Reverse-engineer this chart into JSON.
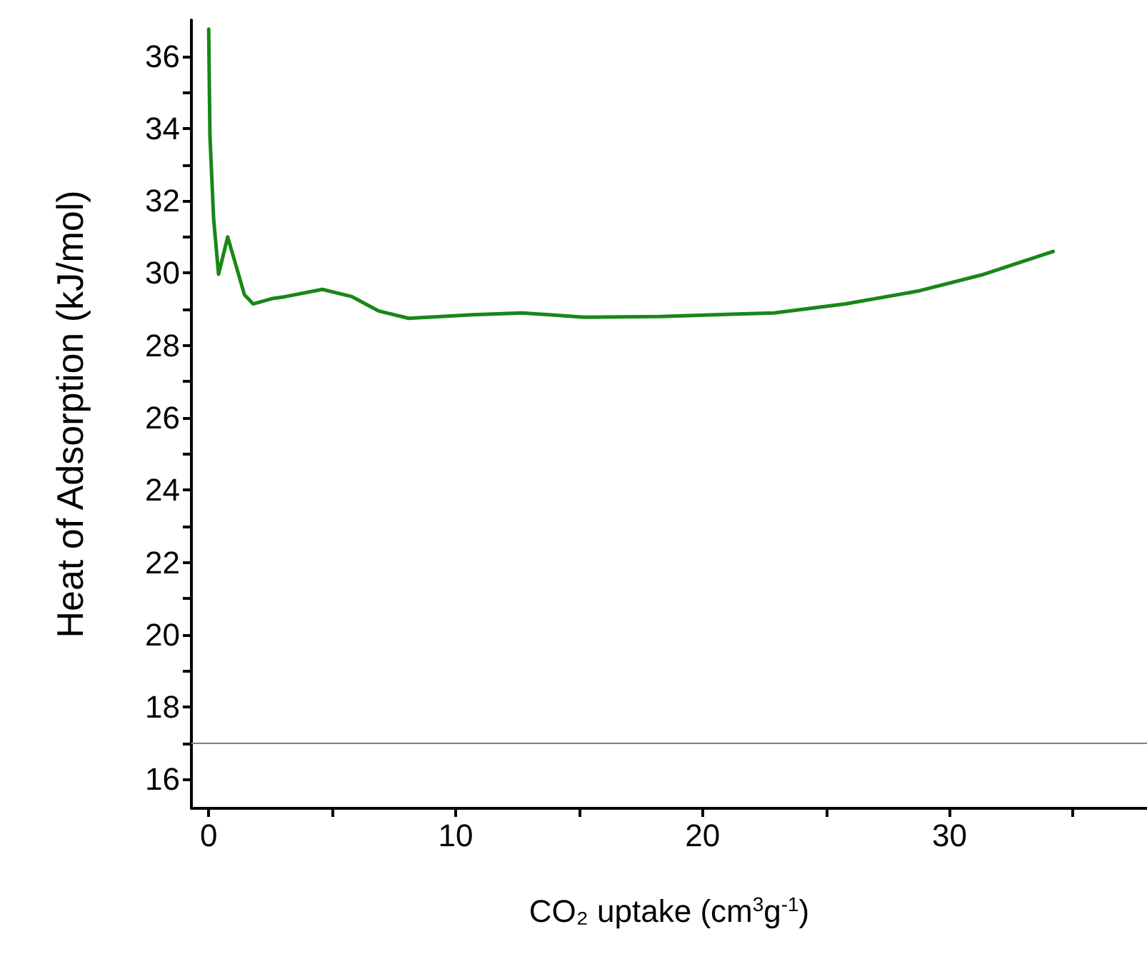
{
  "chart_data": {
    "type": "line",
    "xlabel": "CO₂ uptake (cm$^{3}$g$^{-1}$)",
    "ylabel": "Heat of Adsorption (kJ/mol)",
    "x": [
      0,
      0.05,
      0.2,
      0.4,
      0.77,
      1.45,
      1.8,
      2.6,
      3.1,
      4.6,
      5.8,
      6.9,
      8.1,
      10.7,
      12.7,
      15.2,
      18.3,
      22.9,
      25.8,
      28.7,
      31.3,
      34.2
    ],
    "series": [
      {
        "color": "#188718",
        "values": [
          36.75,
          33.8,
          31.5,
          29.97,
          31.0,
          29.4,
          29.15,
          29.3,
          29.35,
          29.55,
          29.35,
          28.95,
          28.75,
          28.85,
          28.9,
          28.78,
          28.8,
          28.9,
          29.15,
          29.5,
          29.95,
          30.6
        ]
      }
    ],
    "xlim": [
      -0.7,
      38
    ],
    "ylim": [
      15.2,
      37
    ],
    "xticks": [
      0,
      {
        "value": 5,
        "label": null
      },
      10,
      {
        "value": 15,
        "label": null
      },
      20,
      {
        "value": 25,
        "label": null
      },
      30,
      {
        "value": 35,
        "label": null
      }
    ],
    "yticks": [
      16,
      {
        "value": 17,
        "label": null
      },
      18,
      {
        "value": 19,
        "label": null
      },
      20,
      {
        "value": 21,
        "label": null
      },
      22,
      {
        "value": 23,
        "label": null
      },
      24,
      {
        "value": 25,
        "label": null
      },
      26,
      {
        "value": 27,
        "label": null
      },
      28,
      {
        "value": 29,
        "label": null
      },
      30,
      {
        "value": 31,
        "label": null
      },
      32,
      {
        "value": 33,
        "label": null
      },
      34,
      {
        "value": 35,
        "label": null
      },
      36
    ],
    "ref_lines": [
      {
        "axis": "y",
        "value": 17,
        "color": "#808080"
      }
    ],
    "grid": false,
    "marker": "none",
    "line_style": "solid"
  }
}
